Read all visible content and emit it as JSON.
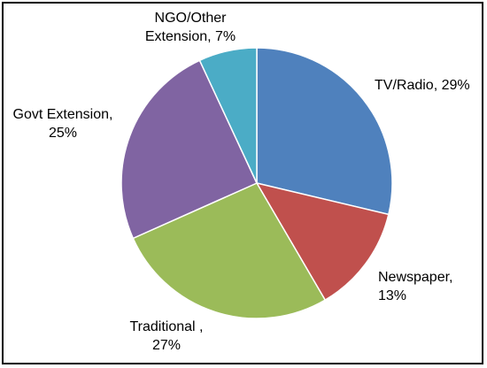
{
  "chart_data": {
    "type": "pie",
    "title": "",
    "slices": [
      {
        "name": "TV/Radio",
        "value": 29,
        "color": "#4F81BD",
        "label_lines": [
          "TV/Radio, 29%"
        ]
      },
      {
        "name": "Newspaper",
        "value": 13,
        "color": "#C0504D",
        "label_lines": [
          "Newspaper,",
          "13%"
        ]
      },
      {
        "name": "Traditional",
        "value": 27,
        "color": "#9BBB59",
        "label_lines": [
          "Traditional ,",
          "27%"
        ]
      },
      {
        "name": "Govt Extension",
        "value": 25,
        "color": "#8064A2",
        "label_lines": [
          "Govt Extension,",
          "25%"
        ]
      },
      {
        "name": "NGO/Other Extension",
        "value": 7,
        "color": "#4BACC6",
        "label_lines": [
          "NGO/Other",
          "Extension, 7%"
        ]
      }
    ],
    "start_angle": "12 o'clock",
    "direction": "clockwise",
    "legend": "none"
  }
}
